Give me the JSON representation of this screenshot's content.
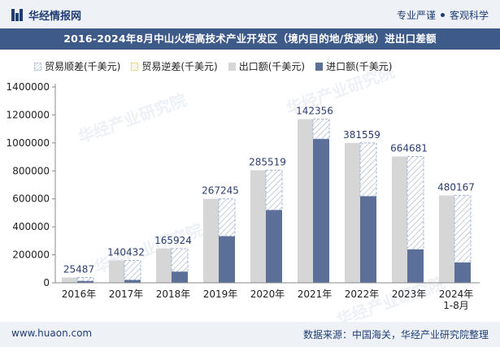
{
  "header": {
    "brand": "华经情报网",
    "tag1": "专业严谨",
    "tag2": "客观科学"
  },
  "colors": {
    "export": "#d6d6d6",
    "import": "#5b6f99",
    "surplus_edge": "#9fb3d6",
    "deficit_edge": "#e8c34a",
    "title_bg": "#3e5a88"
  },
  "legend": {
    "surplus": "贸易顺差(千美元)",
    "deficit": "贸易逆差(千美元)",
    "export": "出口额(千美元)",
    "import": "进口额(千美元)"
  },
  "watermark": "华经产业研究院",
  "footer": {
    "url": "www.huaon.com",
    "source": "数据来源：中国海关，华经产业研究院整理"
  },
  "chart_data": {
    "type": "bar",
    "title": "2016-2024年8月中山火炬高技术产业开发区（境内目的地/货源地）进出口差额",
    "categories": [
      "2016年",
      "2017年",
      "2018年",
      "2019年",
      "2020年",
      "2021年",
      "2022年",
      "2023年",
      "2024年\n1-8月"
    ],
    "series": [
      {
        "name": "出口额(千美元)",
        "values": [
          38000,
          160000,
          245000,
          600000,
          805000,
          1170000,
          1000000,
          903000,
          625000
        ]
      },
      {
        "name": "进口额(千美元)",
        "values": [
          12513,
          19568,
          79076,
          332755,
          519481,
          1027644,
          618441,
          238319,
          144833
        ]
      },
      {
        "name": "贸易顺差(千美元)",
        "values": [
          25487,
          140432,
          165924,
          267245,
          285519,
          142356,
          381559,
          664681,
          480167
        ]
      }
    ],
    "data_labels": [
      "25487",
      "140432",
      "165924",
      "267245",
      "285519",
      "142356",
      "381559",
      "664681",
      "480167"
    ],
    "ylim": [
      0,
      1400000
    ],
    "yticks": [
      0,
      200000,
      400000,
      600000,
      800000,
      1000000,
      1200000,
      1400000
    ],
    "ytick_labels": [
      "0",
      "200000",
      "400000",
      "600000",
      "800000",
      "1000000",
      "1200000",
      "1400000"
    ],
    "grid": false,
    "legend_position": "top"
  }
}
